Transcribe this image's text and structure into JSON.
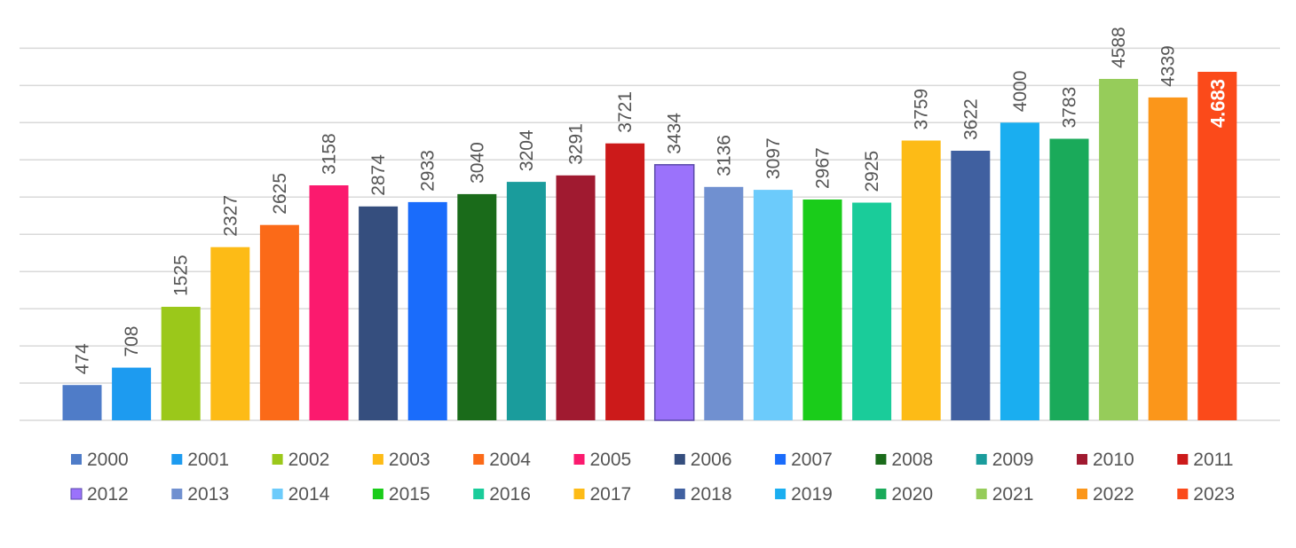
{
  "chart_data": {
    "type": "bar",
    "categories": [
      "2000",
      "2001",
      "2002",
      "2003",
      "2004",
      "2005",
      "2006",
      "2007",
      "2008",
      "2009",
      "2010",
      "2011",
      "2012",
      "2013",
      "2014",
      "2015",
      "2016",
      "2017",
      "2018",
      "2019",
      "2020",
      "2021",
      "2022",
      "2023"
    ],
    "values": [
      474,
      708,
      1525,
      2327,
      2625,
      3158,
      2874,
      2933,
      3040,
      3204,
      3291,
      3721,
      3434,
      3136,
      3097,
      2967,
      2925,
      3759,
      3622,
      4000,
      3783,
      4588,
      4339,
      4683
    ],
    "data_labels": [
      "474",
      "708",
      "1525",
      "2327",
      "2625",
      "3158",
      "2874",
      "2933",
      "3040",
      "3204",
      "3291",
      "3721",
      "3434",
      "3136",
      "3097",
      "2967",
      "2925",
      "3759",
      "3622",
      "4000",
      "3783",
      "4588",
      "4339",
      "4.683"
    ],
    "colors": [
      "#4f7cc8",
      "#1d9bf0",
      "#9bc81a",
      "#fdbb16",
      "#fb6a18",
      "#fb1a6e",
      "#354e7e",
      "#1a6cfb",
      "#1a6b1a",
      "#1a9c9c",
      "#a01a30",
      "#cc1a1a",
      "#9b72fb",
      "#7090d0",
      "#6ccbfb",
      "#1acc1a",
      "#1acc9a",
      "#fdbb16",
      "#4060a0",
      "#1aaef0",
      "#1aaa5a",
      "#96cc5a",
      "#fb961a",
      "#fb4a1a"
    ],
    "ylim": [
      0,
      5000
    ],
    "grid": true,
    "legend": "bottom",
    "title": "",
    "xlabel": "",
    "ylabel": ""
  }
}
